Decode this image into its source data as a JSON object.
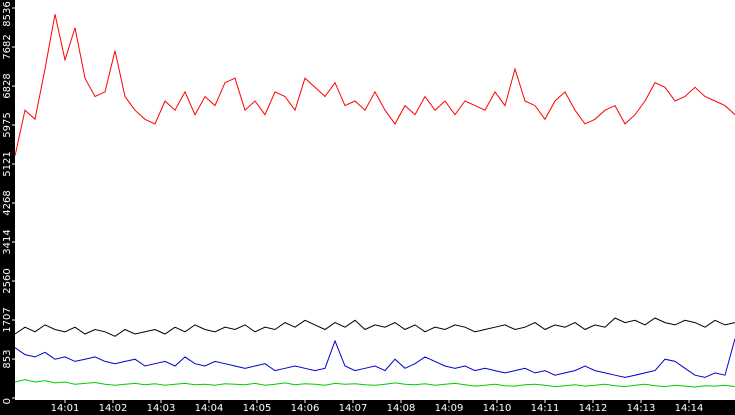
{
  "chart_data": {
    "type": "line",
    "ylim": [
      0,
      8536
    ],
    "yticks": [
      0,
      853,
      1707,
      2560,
      3414,
      4268,
      5121,
      5975,
      6828,
      7682,
      8536
    ],
    "xticks": [
      "14:01",
      "14:02",
      "14:03",
      "14:04",
      "14:05",
      "14:06",
      "14:07",
      "14:08",
      "14:09",
      "14:10",
      "14:11",
      "14:12",
      "14:13",
      "14:14"
    ],
    "series": [
      {
        "color": "#ff0000",
        "values": [
          5300,
          6300,
          6100,
          7200,
          8400,
          7400,
          8100,
          7000,
          6600,
          6700,
          7600,
          6600,
          6300,
          6100,
          6000,
          6500,
          6300,
          6700,
          6200,
          6600,
          6400,
          6900,
          7000,
          6300,
          6500,
          6200,
          6700,
          6600,
          6300,
          7000,
          6800,
          6600,
          6900,
          6400,
          6500,
          6300,
          6700,
          6300,
          6000,
          6400,
          6200,
          6600,
          6300,
          6500,
          6200,
          6500,
          6400,
          6300,
          6700,
          6400,
          7200,
          6500,
          6400,
          6100,
          6500,
          6700,
          6300,
          6000,
          6100,
          6300,
          6400,
          6000,
          6200,
          6500,
          6900,
          6800,
          6500,
          6600,
          6800,
          6600,
          6500,
          6400,
          6200
        ]
      },
      {
        "color": "#000000",
        "values": [
          1400,
          1550,
          1450,
          1600,
          1500,
          1450,
          1550,
          1400,
          1500,
          1450,
          1350,
          1500,
          1400,
          1450,
          1500,
          1400,
          1550,
          1450,
          1600,
          1500,
          1450,
          1550,
          1500,
          1600,
          1450,
          1550,
          1500,
          1650,
          1550,
          1700,
          1600,
          1500,
          1650,
          1550,
          1700,
          1500,
          1600,
          1550,
          1650,
          1500,
          1600,
          1450,
          1550,
          1500,
          1600,
          1550,
          1450,
          1500,
          1550,
          1600,
          1500,
          1550,
          1650,
          1500,
          1600,
          1550,
          1650,
          1500,
          1600,
          1550,
          1750,
          1650,
          1700,
          1600,
          1750,
          1650,
          1600,
          1700,
          1650,
          1550,
          1700,
          1600,
          1650
        ]
      },
      {
        "color": "#0000cc",
        "values": [
          1100,
          950,
          900,
          1000,
          850,
          900,
          800,
          850,
          900,
          800,
          750,
          800,
          850,
          700,
          750,
          800,
          700,
          900,
          750,
          700,
          800,
          750,
          700,
          650,
          700,
          750,
          600,
          650,
          700,
          650,
          600,
          650,
          1250,
          700,
          600,
          650,
          700,
          600,
          850,
          650,
          750,
          900,
          800,
          700,
          650,
          700,
          600,
          650,
          600,
          550,
          600,
          650,
          550,
          600,
          500,
          550,
          600,
          700,
          600,
          550,
          500,
          450,
          500,
          550,
          600,
          850,
          800,
          650,
          500,
          450,
          550,
          500,
          1300
        ]
      },
      {
        "color": "#00cc00",
        "values": [
          350,
          400,
          350,
          380,
          330,
          350,
          300,
          320,
          340,
          300,
          280,
          300,
          320,
          290,
          310,
          280,
          300,
          320,
          290,
          300,
          280,
          310,
          300,
          290,
          320,
          280,
          300,
          330,
          290,
          310,
          300,
          280,
          320,
          300,
          310,
          290,
          280,
          300,
          330,
          300,
          290,
          310,
          280,
          300,
          320,
          290,
          260,
          280,
          300,
          270,
          260,
          290,
          300,
          280,
          250,
          270,
          290,
          260,
          280,
          300,
          270,
          250,
          280,
          300,
          270,
          250,
          280,
          260,
          240,
          270,
          260,
          280,
          250
        ]
      }
    ]
  }
}
